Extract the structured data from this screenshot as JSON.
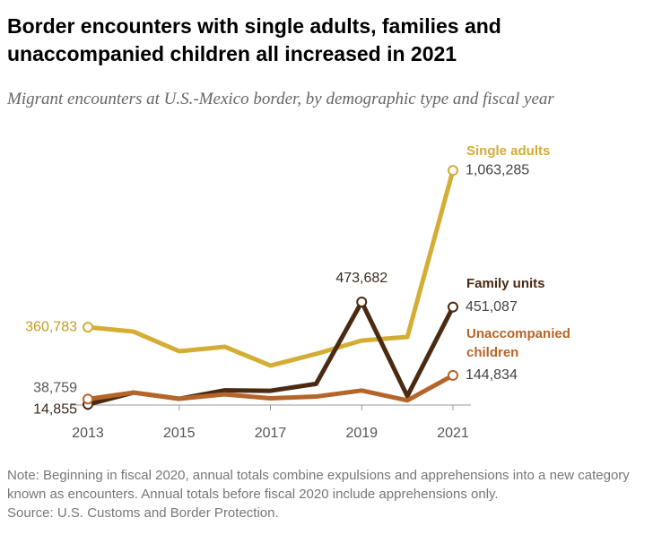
{
  "chart_data": {
    "type": "line",
    "title": "Border encounters with single adults, families and unaccompanied children all increased in 2021",
    "subtitle": "Migrant encounters at U.S.-Mexico border, by demographic type and fiscal year",
    "note": "Note: Beginning in fiscal 2020, annual totals combine expulsions and apprehensions into a new category known as encounters. Annual totals before fiscal 2020 include apprehensions only.",
    "source": "Source: U.S. Customs and Border Protection.",
    "x": [
      2013,
      2014,
      2015,
      2016,
      2017,
      2018,
      2019,
      2020,
      2021
    ],
    "xlim": [
      2013,
      2021
    ],
    "xticks": [
      2013,
      2015,
      2017,
      2019,
      2021
    ],
    "ylim": [
      0,
      1100000
    ],
    "series": [
      {
        "name": "Single adults",
        "color": "#d4ad35",
        "values": [
          360783,
          341000,
          253000,
          273000,
          189000,
          241000,
          301000,
          317000,
          1063285
        ],
        "value_labels": [
          "360,783",
          null,
          null,
          null,
          null,
          null,
          null,
          null,
          "1,063,285"
        ]
      },
      {
        "name": "Family units",
        "color": "#4a2a12",
        "values": [
          14855,
          68000,
          40000,
          78000,
          76000,
          107000,
          473682,
          52000,
          451087
        ],
        "value_labels": [
          "14,855",
          null,
          null,
          null,
          null,
          null,
          "473,682",
          null,
          "451,087"
        ]
      },
      {
        "name": "Unaccompanied children",
        "color": "#b5652a",
        "values": [
          38759,
          68000,
          40000,
          60000,
          42000,
          50000,
          77000,
          33000,
          144834
        ],
        "value_labels": [
          "38,759",
          null,
          null,
          null,
          null,
          null,
          null,
          null,
          "144,834"
        ]
      }
    ]
  }
}
